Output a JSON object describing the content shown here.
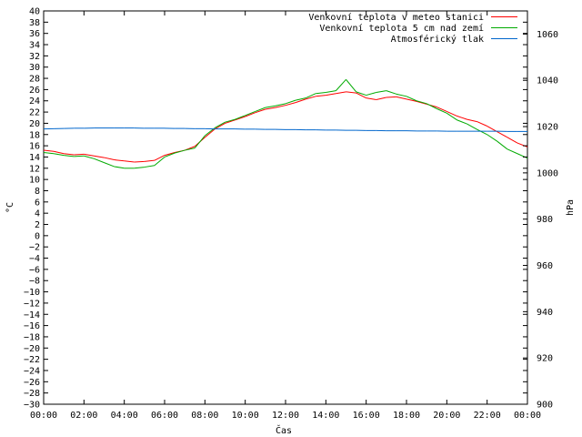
{
  "chart_data": {
    "type": "line",
    "title": "",
    "xlabel": "Čas",
    "ylabel": "°C",
    "y2label": "hPa",
    "x_ticks": [
      "00:00",
      "02:00",
      "04:00",
      "06:00",
      "08:00",
      "10:00",
      "12:00",
      "14:00",
      "16:00",
      "18:00",
      "20:00",
      "22:00",
      "00:00"
    ],
    "x_range_hours": [
      0,
      24
    ],
    "ylim": [
      -30,
      40
    ],
    "y_tick_step": 2,
    "y2lim": [
      900,
      1070
    ],
    "y2_ticks": [
      900,
      920,
      940,
      960,
      980,
      1000,
      1020,
      1040,
      1060
    ],
    "grid": false,
    "legend_position": "top-right",
    "x": [
      0,
      0.5,
      1,
      1.5,
      2,
      2.5,
      3,
      3.5,
      4,
      4.5,
      5,
      5.5,
      6,
      6.5,
      7,
      7.5,
      8,
      8.5,
      9,
      9.5,
      10,
      10.5,
      11,
      11.5,
      12,
      12.5,
      13,
      13.5,
      14,
      14.5,
      15,
      15.5,
      16,
      16.5,
      17,
      17.5,
      18,
      18.5,
      19,
      19.5,
      20,
      20.5,
      21,
      21.5,
      22,
      22.5,
      23,
      23.5,
      24
    ],
    "series": [
      {
        "name": "Venkovní teplota v meteo stanici",
        "color": "#ff0000",
        "axis": "left",
        "values": [
          15.2,
          15.0,
          14.6,
          14.4,
          14.5,
          14.2,
          13.9,
          13.5,
          13.3,
          13.1,
          13.2,
          13.4,
          14.3,
          14.8,
          15.2,
          15.9,
          17.5,
          19.0,
          20.0,
          20.6,
          21.2,
          21.9,
          22.5,
          22.8,
          23.2,
          23.7,
          24.3,
          24.8,
          25.0,
          25.3,
          25.6,
          25.4,
          24.5,
          24.2,
          24.6,
          24.7,
          24.3,
          23.9,
          23.4,
          22.9,
          22.1,
          21.3,
          20.7,
          20.3,
          19.5,
          18.5,
          17.5,
          16.5,
          15.8
        ]
      },
      {
        "name": "Venkovní teplota 5 cm nad zemí",
        "color": "#00aa00",
        "axis": "left",
        "values": [
          14.8,
          14.6,
          14.3,
          14.1,
          14.2,
          13.7,
          13.0,
          12.3,
          12.0,
          12.0,
          12.2,
          12.5,
          14.0,
          14.7,
          15.2,
          15.6,
          17.8,
          19.2,
          20.2,
          20.7,
          21.4,
          22.1,
          22.8,
          23.1,
          23.5,
          24.1,
          24.5,
          25.3,
          25.5,
          25.8,
          27.8,
          25.6,
          25.0,
          25.5,
          25.8,
          25.2,
          24.8,
          24.0,
          23.5,
          22.6,
          21.8,
          20.6,
          19.9,
          18.9,
          18.0,
          16.8,
          15.4,
          14.6,
          13.8
        ]
      },
      {
        "name": "Atmosférický tlak",
        "color": "#0066cc",
        "axis": "right",
        "values": [
          1019.0,
          1019.1,
          1019.2,
          1019.3,
          1019.3,
          1019.4,
          1019.4,
          1019.4,
          1019.4,
          1019.4,
          1019.3,
          1019.3,
          1019.3,
          1019.2,
          1019.2,
          1019.1,
          1019.1,
          1019.0,
          1019.0,
          1019.0,
          1018.9,
          1018.9,
          1018.8,
          1018.8,
          1018.7,
          1018.7,
          1018.6,
          1018.6,
          1018.5,
          1018.5,
          1018.4,
          1018.4,
          1018.3,
          1018.3,
          1018.2,
          1018.2,
          1018.2,
          1018.1,
          1018.1,
          1018.1,
          1018.0,
          1018.0,
          1018.0,
          1018.0,
          1018.0,
          1018.0,
          1017.9,
          1017.9,
          1017.9
        ]
      }
    ]
  }
}
